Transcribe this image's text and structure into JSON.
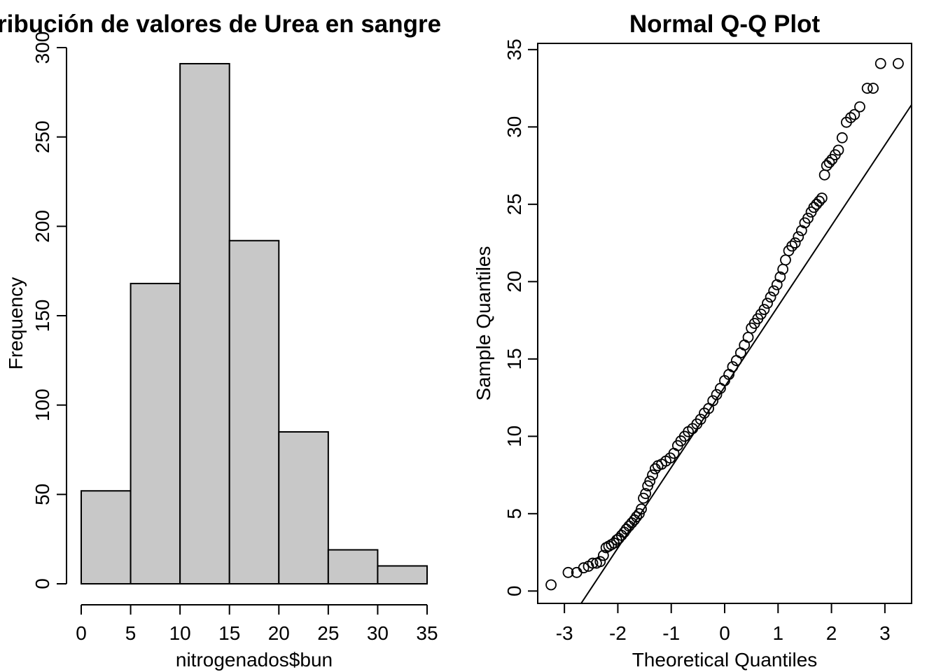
{
  "chart_data": [
    {
      "type": "bar",
      "title": "Distribución de valores de Urea en sangre",
      "xlabel": "nitrogenados$bun",
      "ylabel": "Frequency",
      "bins": [
        [
          0,
          5
        ],
        [
          5,
          10
        ],
        [
          10,
          15
        ],
        [
          15,
          20
        ],
        [
          20,
          25
        ],
        [
          25,
          30
        ],
        [
          30,
          35
        ]
      ],
      "values": [
        52,
        168,
        291,
        192,
        85,
        19,
        10
      ],
      "xlim": [
        0,
        35
      ],
      "ylim": [
        0,
        300
      ],
      "xticks": [
        0,
        5,
        10,
        15,
        20,
        25,
        30,
        35
      ],
      "yticks": [
        0,
        50,
        100,
        150,
        200,
        250,
        300
      ],
      "bar_color": "#c8c8c8",
      "grid": false
    },
    {
      "type": "scatter",
      "title": "Normal Q-Q Plot",
      "xlabel": "Theoretical Quantiles",
      "ylabel": "Sample Quantiles",
      "xticks": [
        -3,
        -2,
        -1,
        0,
        1,
        2,
        3
      ],
      "yticks": [
        0,
        5,
        10,
        15,
        20,
        25,
        30,
        35
      ],
      "xlim": [
        -3.5,
        3.5
      ],
      "ylim": [
        -0.8,
        35.4
      ],
      "qq_line": {
        "slope": 5.21,
        "intercept": 13.2
      },
      "points": [
        [
          -3.25,
          0.4
        ],
        [
          -2.93,
          1.2
        ],
        [
          -2.77,
          1.2
        ],
        [
          -2.64,
          1.5
        ],
        [
          -2.55,
          1.6
        ],
        [
          -2.47,
          1.8
        ],
        [
          -2.4,
          1.8
        ],
        [
          -2.33,
          1.9
        ],
        [
          -2.27,
          2.3
        ],
        [
          -2.22,
          2.8
        ],
        [
          -2.17,
          2.9
        ],
        [
          -2.12,
          3.0
        ],
        [
          -2.07,
          3.1
        ],
        [
          -2.02,
          3.3
        ],
        [
          -1.98,
          3.4
        ],
        [
          -1.93,
          3.6
        ],
        [
          -1.88,
          3.8
        ],
        [
          -1.84,
          4.0
        ],
        [
          -1.79,
          4.2
        ],
        [
          -1.74,
          4.4
        ],
        [
          -1.69,
          4.6
        ],
        [
          -1.65,
          4.8
        ],
        [
          -1.6,
          5.0
        ],
        [
          -1.56,
          5.3
        ],
        [
          -1.52,
          6.0
        ],
        [
          -1.48,
          6.3
        ],
        [
          -1.44,
          6.8
        ],
        [
          -1.4,
          7.1
        ],
        [
          -1.35,
          7.5
        ],
        [
          -1.3,
          7.9
        ],
        [
          -1.25,
          8.1
        ],
        [
          -1.18,
          8.2
        ],
        [
          -1.1,
          8.4
        ],
        [
          -1.02,
          8.6
        ],
        [
          -0.95,
          8.9
        ],
        [
          -0.88,
          9.4
        ],
        [
          -0.82,
          9.7
        ],
        [
          -0.75,
          10.0
        ],
        [
          -0.68,
          10.3
        ],
        [
          -0.6,
          10.5
        ],
        [
          -0.52,
          10.8
        ],
        [
          -0.45,
          11.1
        ],
        [
          -0.38,
          11.5
        ],
        [
          -0.3,
          11.8
        ],
        [
          -0.22,
          12.3
        ],
        [
          -0.15,
          12.7
        ],
        [
          -0.08,
          13.1
        ],
        [
          0.0,
          13.6
        ],
        [
          0.08,
          14.0
        ],
        [
          0.15,
          14.5
        ],
        [
          0.22,
          14.9
        ],
        [
          0.3,
          15.4
        ],
        [
          0.37,
          15.9
        ],
        [
          0.44,
          16.4
        ],
        [
          0.5,
          17.0
        ],
        [
          0.56,
          17.3
        ],
        [
          0.62,
          17.6
        ],
        [
          0.68,
          17.9
        ],
        [
          0.74,
          18.2
        ],
        [
          0.8,
          18.6
        ],
        [
          0.86,
          19.0
        ],
        [
          0.92,
          19.4
        ],
        [
          0.98,
          19.8
        ],
        [
          1.04,
          20.3
        ],
        [
          1.09,
          20.8
        ],
        [
          1.14,
          21.4
        ],
        [
          1.2,
          22.0
        ],
        [
          1.26,
          22.3
        ],
        [
          1.32,
          22.5
        ],
        [
          1.38,
          22.9
        ],
        [
          1.44,
          23.3
        ],
        [
          1.5,
          23.8
        ],
        [
          1.56,
          24.1
        ],
        [
          1.62,
          24.5
        ],
        [
          1.67,
          24.8
        ],
        [
          1.72,
          25.0
        ],
        [
          1.77,
          25.2
        ],
        [
          1.82,
          25.4
        ],
        [
          1.87,
          26.9
        ],
        [
          1.91,
          27.5
        ],
        [
          1.96,
          27.7
        ],
        [
          2.01,
          27.9
        ],
        [
          2.07,
          28.2
        ],
        [
          2.13,
          28.5
        ],
        [
          2.2,
          29.3
        ],
        [
          2.28,
          30.3
        ],
        [
          2.36,
          30.6
        ],
        [
          2.43,
          30.8
        ],
        [
          2.53,
          31.3
        ],
        [
          2.67,
          32.5
        ],
        [
          2.78,
          32.5
        ],
        [
          2.92,
          34.1
        ],
        [
          3.25,
          34.1
        ]
      ]
    }
  ]
}
